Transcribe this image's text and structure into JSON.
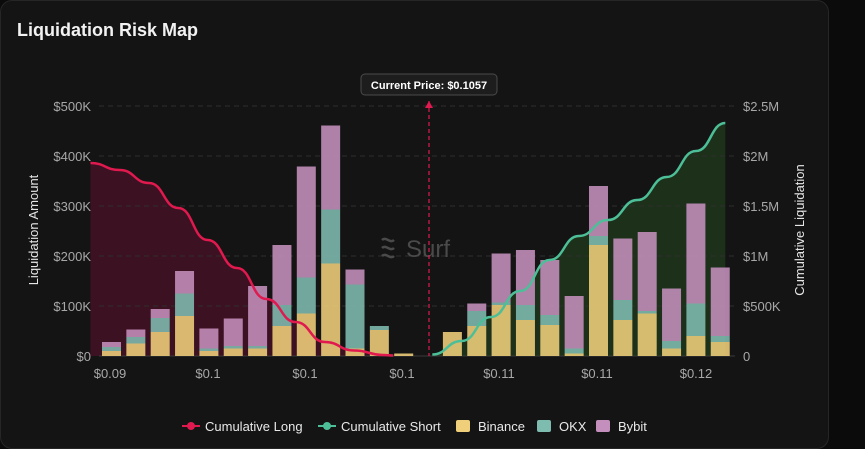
{
  "card": {
    "title": "Liquidation Risk Map"
  },
  "watermark": {
    "text": "Surf"
  },
  "chart_data": {
    "type": "bar",
    "title": "Liquidation Risk Map",
    "current_price_label": "Current Price: $0.1057",
    "ylabel_left": "Liquidation Amount",
    "ylabel_right": "Cumulative Liquidation",
    "ylim_left": [
      0,
      500000
    ],
    "ylim_right": [
      0,
      2500000
    ],
    "yticks_left": [
      "$0",
      "$100K",
      "$200K",
      "$300K",
      "$400K",
      "$500K"
    ],
    "yticks_right": [
      "0",
      "$500K",
      "$1M",
      "$1.5M",
      "$2M",
      "$2.5M"
    ],
    "xticks": [
      "$0.09",
      "$0.1",
      "$0.1",
      "$0.1",
      "$0.1",
      "$0.11",
      "$0.11",
      "$0.12"
    ],
    "legend_position": "bottom",
    "grid": true,
    "colors": {
      "binance": "#f0cf7a",
      "okx": "#7fbcb0",
      "bybit": "#c58fbd",
      "cumulative_long": "#e0194f",
      "cumulative_short": "#4dbf98",
      "long_fill": "#4a1025",
      "short_fill": "#1f3a1c"
    },
    "series": [
      {
        "name": "Binance",
        "values": [
          10000,
          25000,
          48000,
          80000,
          10000,
          15000,
          15000,
          60000,
          85000,
          185000,
          15000,
          52000,
          5000,
          0,
          48000,
          60000,
          102000,
          72000,
          62000,
          5000,
          222000,
          72000,
          85000,
          15000,
          40000,
          28000
        ]
      },
      {
        "name": "OKX",
        "values": [
          8000,
          13000,
          28000,
          45000,
          5000,
          5000,
          5000,
          42000,
          72000,
          108000,
          128000,
          8000,
          0,
          0,
          0,
          30000,
          5000,
          30000,
          20000,
          10000,
          18000,
          40000,
          5000,
          15000,
          65000,
          12000
        ]
      },
      {
        "name": "Bybit",
        "values": [
          10000,
          15000,
          18000,
          45000,
          40000,
          55000,
          120000,
          120000,
          222000,
          168000,
          30000,
          0,
          0,
          0,
          0,
          15000,
          98000,
          110000,
          110000,
          105000,
          100000,
          123000,
          158000,
          105000,
          200000,
          137000
        ]
      }
    ],
    "cumulative_long": {
      "name": "Cumulative Long",
      "x": [
        0.089,
        0.0905,
        0.092,
        0.0935,
        0.095,
        0.0965,
        0.098,
        0.0995,
        0.101,
        0.1025,
        0.104,
        0.1045
      ],
      "y": [
        1930000,
        1860000,
        1730000,
        1480000,
        1160000,
        880000,
        570000,
        340000,
        140000,
        55000,
        10000,
        5000
      ]
    },
    "cumulative_short": {
      "name": "Cumulative Short",
      "x": [
        0.1065,
        0.108,
        0.1095,
        0.111,
        0.1125,
        0.114,
        0.1155,
        0.117,
        0.1185,
        0.12,
        0.1215
      ],
      "y": [
        15000,
        150000,
        390000,
        650000,
        960000,
        1200000,
        1360000,
        1560000,
        1790000,
        2050000,
        2330000
      ]
    }
  }
}
